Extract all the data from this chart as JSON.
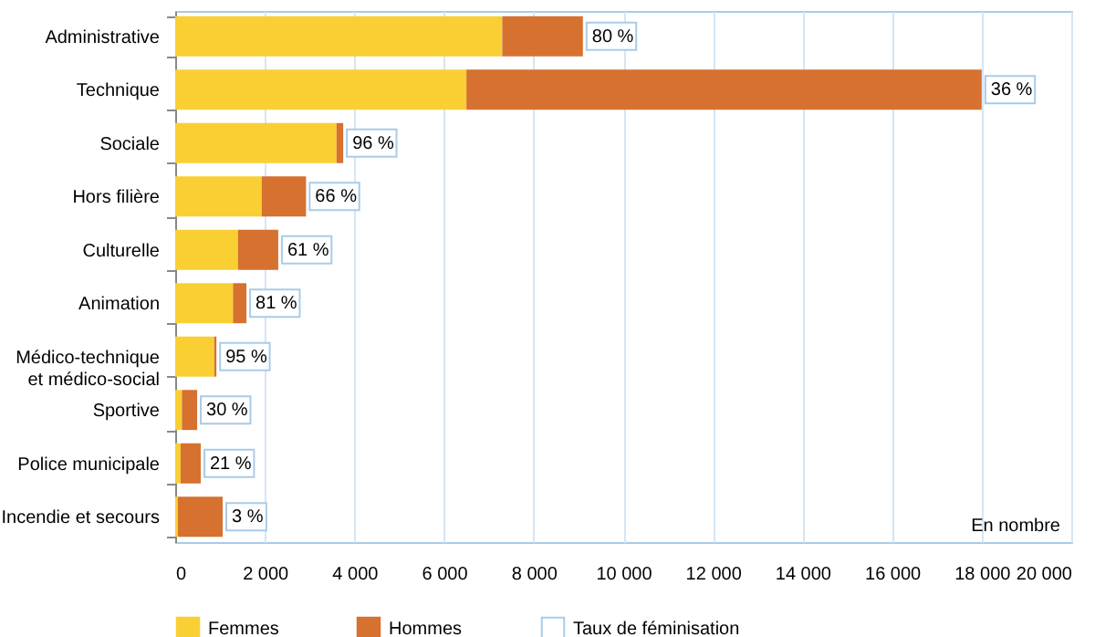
{
  "chart_data": {
    "type": "bar",
    "orientation": "horizontal",
    "stacked": true,
    "categories": [
      "Administrative",
      "Technique",
      "Sociale",
      "Hors filière",
      "Culturelle",
      "Animation",
      "Médico-technique\net médico-social",
      "Sportive",
      "Police municipale",
      "Incendie et secours"
    ],
    "series": [
      {
        "name": "Femmes",
        "color": "#f9cf33",
        "values": [
          7300,
          6500,
          3600,
          1930,
          1400,
          1290,
          870,
          150,
          120,
          60
        ]
      },
      {
        "name": "Hommes",
        "color": "#d67130",
        "values": [
          1800,
          11500,
          150,
          990,
          900,
          300,
          50,
          340,
          450,
          1000
        ]
      },
      {
        "name": "Taux de féminisation",
        "color": "#ffffff",
        "values": [
          null,
          null,
          null,
          null,
          null,
          null,
          null,
          null,
          null,
          null
        ],
        "value_labels": [
          "80 %",
          "36 %",
          "96 %",
          "66 %",
          "61 %",
          "81 %",
          "95 %",
          "30 %",
          "21 %",
          "3 %"
        ]
      }
    ],
    "xlim": [
      0,
      20000
    ],
    "xticks": [
      0,
      {
        "value": 2000,
        "label": "2 000"
      },
      {
        "value": 4000,
        "label": "4 000"
      },
      {
        "value": 6000,
        "label": "6 000"
      },
      {
        "value": 8000,
        "label": "8 000"
      },
      {
        "value": 10000,
        "label": "10 000"
      },
      {
        "value": 12000,
        "label": "12 000"
      },
      {
        "value": 14000,
        "label": "14 000"
      },
      {
        "value": 16000,
        "label": "16 000"
      },
      {
        "value": 18000,
        "label": "18 000"
      },
      {
        "value": 20000,
        "label": "20 000"
      }
    ],
    "grid": "x",
    "legend": "bottom",
    "annotations": [
      "En nombre"
    ]
  }
}
